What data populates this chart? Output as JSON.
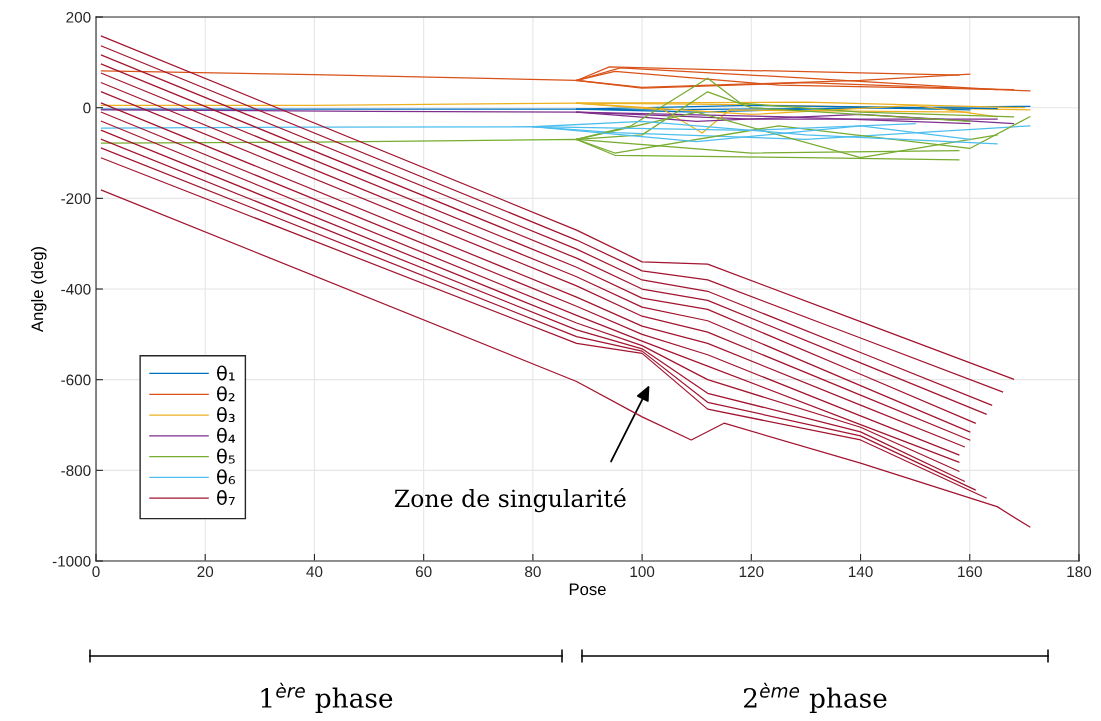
{
  "chart_data": {
    "type": "line",
    "xlabel": "Pose",
    "ylabel": "Angle (deg)",
    "xlim": [
      0,
      180
    ],
    "ylim": [
      -1000,
      200
    ],
    "xticks": [
      0,
      20,
      40,
      60,
      80,
      100,
      120,
      140,
      160,
      180
    ],
    "yticks": [
      -1000,
      -800,
      -600,
      -400,
      -200,
      0,
      200
    ],
    "grid": true,
    "legend": "bottom left",
    "marker": "none",
    "line_style": "solid",
    "annotations": [
      "Zone de singularité",
      "1$^{ère}$ phase",
      "2$^{ème}$ phase"
    ],
    "series": [
      {
        "name": "θ₁",
        "color": "#0072bd",
        "x": [
          1,
          40,
          88,
          100,
          130,
          171
        ],
        "values": [
          -3,
          -3,
          -3,
          -5,
          -2,
          3
        ]
      },
      {
        "name": "θ₂",
        "color": "#d95319",
        "x": [
          1,
          40,
          88,
          94,
          120,
          158
        ],
        "values": [
          81,
          73,
          60,
          90,
          82,
          72
        ]
      },
      {
        "name": "θ₃",
        "color": "#edb120",
        "x": [
          1,
          40,
          88,
          110,
          140,
          171
        ],
        "values": [
          5,
          5,
          10,
          8,
          2,
          -5
        ]
      },
      {
        "name": "θ₄",
        "color": "#7e2f8e",
        "x": [
          1,
          50,
          88,
          120,
          165
        ],
        "values": [
          -5,
          -8,
          -10,
          -25,
          -25
        ]
      },
      {
        "name": "θ₅",
        "color": "#77ac30",
        "x": [
          1,
          40,
          88,
          95,
          130,
          158
        ],
        "values": [
          -78,
          -76,
          -70,
          -105,
          -110,
          -115
        ]
      },
      {
        "name": "θ₆",
        "color": "#4dbeee",
        "x": [
          1,
          40,
          80,
          95,
          130,
          171
        ],
        "values": [
          -45,
          -43,
          -42,
          -55,
          -70,
          -40
        ]
      },
      {
        "name": "θ₇",
        "color": "#a2142f",
        "x": [
          1,
          88,
          100,
          112,
          140,
          168
        ],
        "values": [
          158,
          -270,
          -340,
          -345,
          -472,
          -599
        ]
      },
      {
        "color": "#0072bd",
        "x": [
          88,
          110,
          140,
          160
        ],
        "values": [
          -3,
          -10,
          0,
          -5
        ]
      },
      {
        "color": "#0072bd",
        "x": [
          88,
          120,
          165
        ],
        "values": [
          -3,
          5,
          -2
        ]
      },
      {
        "color": "#d95319",
        "x": [
          88,
          96,
          130,
          165
        ],
        "values": [
          60,
          88,
          65,
          40
        ]
      },
      {
        "color": "#d95319",
        "x": [
          88,
          100,
          130,
          171
        ],
        "values": [
          60,
          43,
          55,
          37
        ]
      },
      {
        "color": "#d95319",
        "x": [
          88,
          100,
          140,
          160
        ],
        "values": [
          60,
          45,
          60,
          74
        ]
      },
      {
        "color": "#d95319",
        "x": [
          88,
          95,
          125,
          168
        ],
        "values": [
          60,
          80,
          50,
          40
        ]
      },
      {
        "color": "#edb120",
        "x": [
          88,
          104,
          111,
          116,
          160
        ],
        "values": [
          10,
          -5,
          -56,
          -5,
          -10
        ]
      },
      {
        "color": "#edb120",
        "x": [
          88,
          120,
          150,
          165
        ],
        "values": [
          10,
          -15,
          5,
          -20
        ]
      },
      {
        "color": "#edb120",
        "x": [
          88,
          130,
          170
        ],
        "values": [
          10,
          12,
          0
        ]
      },
      {
        "color": "#7e2f8e",
        "x": [
          88,
          110,
          140,
          168
        ],
        "values": [
          -10,
          -30,
          -15,
          -35
        ]
      },
      {
        "color": "#7e2f8e",
        "x": [
          88,
          125,
          160
        ],
        "values": [
          -10,
          -20,
          -35
        ]
      },
      {
        "color": "#77ac30",
        "x": [
          88,
          98,
          112,
          118,
          140,
          168
        ],
        "values": [
          -70,
          -40,
          65,
          10,
          -10,
          -20
        ]
      },
      {
        "color": "#77ac30",
        "x": [
          88,
          100,
          112,
          120,
          160
        ],
        "values": [
          -70,
          -60,
          35,
          0,
          -30
        ]
      },
      {
        "color": "#77ac30",
        "x": [
          88,
          95,
          125,
          160,
          171
        ],
        "values": [
          -70,
          -100,
          -40,
          -90,
          -20
        ]
      },
      {
        "color": "#77ac30",
        "x": [
          88,
          110,
          140,
          165
        ],
        "values": [
          -70,
          -10,
          -110,
          -60
        ]
      },
      {
        "color": "#77ac30",
        "x": [
          88,
          120,
          158
        ],
        "values": [
          -70,
          -100,
          -95
        ]
      },
      {
        "color": "#4dbeee",
        "x": [
          80,
          100,
          130,
          165
        ],
        "values": [
          -42,
          -30,
          -60,
          -80
        ]
      },
      {
        "color": "#4dbeee",
        "x": [
          80,
          110,
          140,
          160
        ],
        "values": [
          -42,
          -75,
          -40,
          -70
        ]
      },
      {
        "color": "#4dbeee",
        "x": [
          80,
          120,
          150
        ],
        "values": [
          -42,
          -50,
          -35
        ]
      },
      {
        "color": "#a2142f",
        "x": [
          1,
          88,
          100,
          112,
          140,
          166
        ],
        "values": [
          136,
          -292,
          -360,
          -380,
          -508,
          -627
        ]
      },
      {
        "color": "#a2142f",
        "x": [
          1,
          88,
          100,
          112,
          140,
          164
        ],
        "values": [
          116,
          -312,
          -380,
          -405,
          -540,
          -656
        ]
      },
      {
        "color": "#a2142f",
        "x": [
          1,
          88,
          100,
          112,
          140,
          163
        ],
        "values": [
          96,
          -332,
          -400,
          -425,
          -563,
          -676
        ]
      },
      {
        "color": "#a2142f",
        "x": [
          1,
          88,
          100,
          112,
          140,
          161
        ],
        "values": [
          76,
          -352,
          -420,
          -445,
          -588,
          -696
        ]
      },
      {
        "color": "#a2142f",
        "x": [
          1,
          88,
          100,
          112,
          140,
          160
        ],
        "values": [
          55,
          -373,
          -440,
          -470,
          -613,
          -715
        ]
      },
      {
        "color": "#a2142f",
        "x": [
          1,
          88,
          100,
          112,
          140,
          160
        ],
        "values": [
          35,
          -393,
          -460,
          -495,
          -634,
          -733
        ]
      },
      {
        "color": "#a2142f",
        "x": [
          1,
          88,
          100,
          112,
          140,
          159
        ],
        "values": [
          10,
          -418,
          -482,
          -520,
          -656,
          -748
        ]
      },
      {
        "color": "#a2142f",
        "x": [
          1,
          88,
          100,
          112,
          140,
          158
        ],
        "values": [
          -10,
          -438,
          -500,
          -545,
          -680,
          -766
        ]
      },
      {
        "color": "#a2142f",
        "x": [
          1,
          88,
          100,
          112,
          140,
          158
        ],
        "values": [
          -30,
          -458,
          -515,
          -570,
          -699,
          -782
        ]
      },
      {
        "color": "#a2142f",
        "x": [
          1,
          88,
          100,
          112,
          140,
          158
        ],
        "values": [
          -50,
          -475,
          -525,
          -600,
          -705,
          -802
        ]
      },
      {
        "color": "#a2142f",
        "x": [
          1,
          88,
          100,
          112,
          140,
          159
        ],
        "values": [
          -70,
          -490,
          -532,
          -630,
          -715,
          -824
        ]
      },
      {
        "color": "#a2142f",
        "x": [
          1,
          88,
          100,
          112,
          140,
          161
        ],
        "values": [
          -89,
          -505,
          -537,
          -650,
          -724,
          -843
        ]
      },
      {
        "color": "#a2142f",
        "x": [
          1,
          88,
          100,
          112,
          140,
          163
        ],
        "values": [
          -111,
          -520,
          -542,
          -665,
          -733,
          -861
        ]
      },
      {
        "color": "#a2142f",
        "x": [
          1,
          88,
          100,
          109,
          115,
          140,
          165,
          171
        ],
        "values": [
          -182,
          -604,
          -682,
          -733,
          -696,
          -784,
          -880,
          -925
        ]
      }
    ]
  }
}
